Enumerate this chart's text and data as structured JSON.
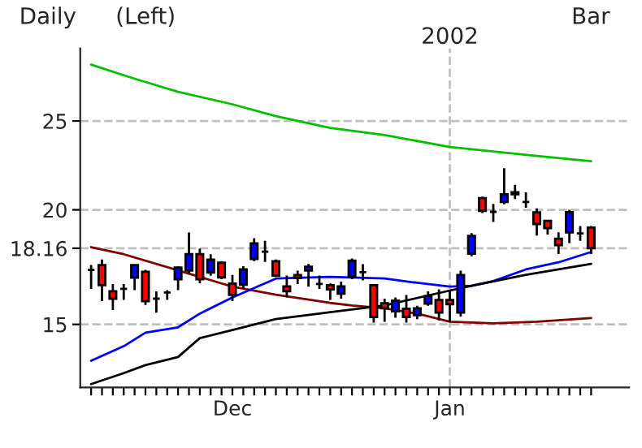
{
  "chart_data": {
    "type": "candlestick",
    "title": "Daily",
    "annotations": [
      "(Left)",
      "Bar"
    ],
    "categories": [
      null,
      null,
      null,
      null,
      null,
      null,
      null,
      null,
      null,
      null,
      null,
      null,
      null,
      "Dec",
      null,
      null,
      null,
      null,
      null,
      null,
      null,
      null,
      null,
      null,
      null,
      null,
      null,
      null,
      null,
      null,
      null,
      null,
      null,
      "Jan",
      null,
      null,
      null,
      null,
      null,
      null,
      null,
      null,
      null,
      null,
      null,
      null,
      null
    ],
    "ohlc": [
      [
        17.2,
        17.41,
        16.4,
        17.2
      ],
      [
        17.41,
        17.65,
        15.9,
        16.55
      ],
      [
        16.3,
        16.6,
        15.55,
        16.0
      ],
      [
        16.4,
        16.6,
        15.95,
        16.4
      ],
      [
        16.87,
        17.41,
        16.35,
        17.41
      ],
      [
        17.12,
        17.2,
        15.75,
        15.9
      ],
      [
        16.0,
        16.3,
        15.45,
        16.0
      ],
      [
        16.25,
        16.35,
        15.95,
        16.25
      ],
      [
        16.8,
        17.35,
        16.35,
        17.3
      ],
      [
        17.17,
        18.89,
        17.05,
        17.89
      ],
      [
        17.89,
        18.15,
        16.63,
        16.8
      ],
      [
        17.08,
        17.89,
        16.95,
        17.65
      ],
      [
        17.51,
        17.58,
        16.8,
        16.88
      ],
      [
        16.62,
        16.98,
        15.9,
        16.15
      ],
      [
        16.57,
        17.36,
        16.4,
        17.22
      ],
      [
        17.68,
        18.62,
        17.58,
        18.38
      ],
      [
        18.0,
        18.5,
        17.55,
        18.0
      ],
      [
        17.58,
        17.65,
        16.9,
        16.95
      ],
      [
        16.5,
        16.96,
        16.05,
        16.3
      ],
      [
        16.98,
        17.17,
        16.6,
        16.85
      ],
      [
        17.17,
        17.46,
        16.49,
        17.34
      ],
      [
        16.6,
        16.96,
        16.4,
        16.6
      ],
      [
        16.55,
        16.62,
        15.95,
        16.38
      ],
      [
        16.2,
        16.7,
        16.0,
        16.5
      ],
      [
        16.9,
        17.7,
        16.8,
        17.6
      ],
      [
        17.1,
        17.45,
        16.75,
        17.1
      ],
      [
        16.55,
        16.55,
        15.07,
        15.28
      ],
      [
        15.82,
        16.0,
        15.1,
        15.62
      ],
      [
        15.5,
        16.05,
        15.25,
        15.92
      ],
      [
        15.6,
        16.15,
        15.07,
        15.28
      ],
      [
        15.35,
        15.72,
        15.2,
        15.62
      ],
      [
        15.8,
        16.3,
        15.72,
        16.1
      ],
      [
        15.95,
        16.38,
        15.15,
        15.45
      ],
      [
        15.95,
        16.3,
        15.1,
        15.78
      ],
      [
        15.45,
        17.17,
        15.3,
        16.98
      ],
      [
        17.91,
        18.86,
        17.8,
        18.73
      ],
      [
        20.6,
        20.68,
        19.84,
        19.95
      ],
      [
        19.9,
        20.3,
        19.4,
        19.9
      ],
      [
        20.4,
        22.2,
        20.28,
        20.8
      ],
      [
        20.9,
        21.3,
        20.55,
        20.8
      ],
      [
        20.4,
        20.9,
        20.1,
        20.4
      ],
      [
        19.87,
        20.07,
        18.75,
        19.3
      ],
      [
        19.45,
        19.45,
        18.8,
        19.1
      ],
      [
        18.6,
        18.9,
        17.9,
        18.3
      ],
      [
        18.9,
        20.0,
        18.4,
        19.88
      ],
      [
        18.85,
        19.2,
        18.5,
        18.85
      ],
      [
        19.13,
        19.2,
        17.9,
        18.16
      ]
    ],
    "colors": [
      "#000000",
      "#ff0000",
      "#ff0000",
      "#000000",
      "#0000ff",
      "#ff0000",
      "#000000",
      "#000000",
      "#0000ff",
      "#0000ff",
      "#ff0000",
      "#0000ff",
      "#ff0000",
      "#ff0000",
      "#0000ff",
      "#0000ff",
      "#000000",
      "#ff0000",
      "#ff0000",
      "#ff0000",
      "#0000ff",
      "#000000",
      "#ff0000",
      "#0000ff",
      "#0000ff",
      "#000000",
      "#ff0000",
      "#ff0000",
      "#0000ff",
      "#ff0000",
      "#0000ff",
      "#0000ff",
      "#ff0000",
      "#ff0000",
      "#0000ff",
      "#0000ff",
      "#ff0000",
      "#000000",
      "#0000ff",
      "#ff0000",
      "#000000",
      "#ff0000",
      "#ff0000",
      "#ff0000",
      "#0000ff",
      "#000000",
      "#ff0000"
    ],
    "series": [
      {
        "type": "line",
        "color": "#00c000",
        "values": [
          28.8,
          null,
          null,
          null,
          27.8,
          null,
          null,
          null,
          26.9,
          null,
          null,
          null,
          null,
          26.07,
          null,
          null,
          null,
          25.3,
          null,
          null,
          null,
          null,
          24.57,
          null,
          null,
          null,
          null,
          24.13,
          null,
          null,
          null,
          null,
          null,
          23.42,
          null,
          null,
          null,
          23.16,
          null,
          null,
          null,
          22.9,
          null,
          null,
          null,
          null,
          22.6
        ]
      },
      {
        "type": "line",
        "color": "#800000",
        "values": [
          18.21,
          null,
          null,
          17.89,
          null,
          null,
          null,
          null,
          17.18,
          null,
          null,
          null,
          null,
          16.49,
          null,
          null,
          null,
          16.16,
          null,
          null,
          null,
          null,
          15.83,
          null,
          15.73,
          null,
          null,
          15.62,
          null,
          null,
          15.41,
          null,
          null,
          15.1,
          null,
          null,
          null,
          15.04,
          null,
          null,
          null,
          15.1,
          null,
          null,
          null,
          null,
          15.24
        ]
      },
      {
        "type": "line",
        "color": "#0000ff",
        "values": [
          13.69,
          null,
          null,
          14.2,
          null,
          14.69,
          null,
          null,
          14.89,
          null,
          15.41,
          null,
          null,
          16.05,
          null,
          null,
          null,
          16.83,
          null,
          null,
          null,
          null,
          16.9,
          null,
          null,
          null,
          null,
          16.83,
          null,
          null,
          16.65,
          null,
          null,
          16.49,
          null,
          16.53,
          null,
          16.72,
          null,
          null,
          17.22,
          null,
          null,
          17.53,
          null,
          null,
          17.99
        ]
      },
      {
        "type": "line",
        "color": "#000000",
        "values": [
          12.91,
          null,
          null,
          13.27,
          null,
          13.54,
          null,
          null,
          13.82,
          null,
          14.49,
          null,
          null,
          14.79,
          null,
          null,
          null,
          15.2,
          null,
          null,
          null,
          15.41,
          15.47,
          null,
          null,
          null,
          null,
          15.73,
          null,
          null,
          null,
          null,
          null,
          16.33,
          null,
          16.53,
          null,
          null,
          null,
          null,
          16.99,
          null,
          null,
          null,
          null,
          null,
          17.46
        ]
      }
    ],
    "log": true,
    "ylim": [
      12.8,
      30
    ],
    "yticks": [
      15,
      18.16,
      20,
      25
    ],
    "grid": "y",
    "ref_lines": [
      {
        "axis": "x",
        "value": "Jan",
        "label": "2002",
        "color": "#c0c0c0",
        "line_style": "dashed"
      }
    ]
  }
}
